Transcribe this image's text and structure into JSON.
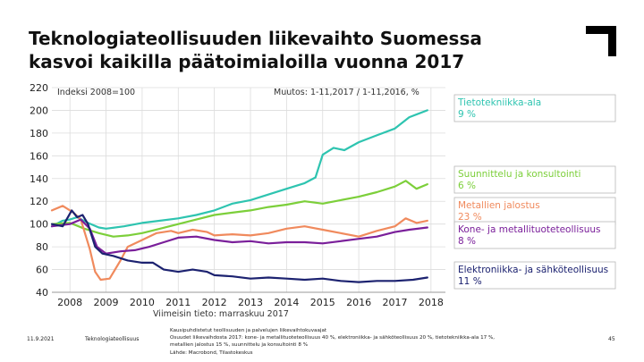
{
  "title": {
    "line1": "Teknologiateollisuuden liikevaihto Suomessa",
    "line2": "kasvoi kaikilla päätoimialoilla vuonna 2017"
  },
  "footer": {
    "date": "11.9.2021",
    "org": "Teknologiateollisuus",
    "note1": "Kausipuhdistetut teollisuuden ja palvelujen liikevaihtokuvaajat",
    "note2": "Osuudet liikevaihdosta 2017: kone- ja metallituoteteollisuus 40 %, elektroniikka- ja sähköteollisuus 20 %, tietotekniikka-ala 17 %,",
    "note3": "metallien jalostus 15 %, suunnittelu ja konsultointi 8 %",
    "note4": "Lähde: Macrobond, Tilastokeskus",
    "page": "45"
  },
  "colors": {
    "tietotekniikka": "#2ec4b0",
    "suunnittelu": "#7ccf3a",
    "metallien": "#f08a5d",
    "kone": "#7a1f9a",
    "elektroniikka": "#1c2270",
    "label_box_border": "#b8b8b8",
    "grid": "#dcdcdc"
  },
  "chart_data": {
    "type": "line",
    "index_label": "Indeksi 2008=100",
    "change_label": "Muutos: 1-11,2017 / 1-11,2016, %",
    "footnote": "Viimeisin tieto: marraskuu 2017",
    "x_ticks": [
      "2008",
      "2009",
      "2010",
      "2011",
      "2012",
      "2013",
      "2014",
      "2015",
      "2016",
      "2017",
      "2018"
    ],
    "y_ticks": [
      "40",
      "60",
      "80",
      "100",
      "120",
      "140",
      "160",
      "180",
      "200",
      "220"
    ],
    "xlim": [
      2007.5,
      2018.4
    ],
    "ylim": [
      40,
      220
    ],
    "legend_position": "right",
    "series": [
      {
        "key": "tietotekniikka",
        "label": "Tietotekniikka-ala",
        "change": "9 %",
        "points": [
          [
            2007.5,
            98
          ],
          [
            2007.8,
            103
          ],
          [
            2008.0,
            104
          ],
          [
            2008.2,
            106
          ],
          [
            2008.5,
            101
          ],
          [
            2008.8,
            97
          ],
          [
            2009.0,
            96
          ],
          [
            2009.5,
            98
          ],
          [
            2010.0,
            101
          ],
          [
            2010.5,
            103
          ],
          [
            2011.0,
            105
          ],
          [
            2011.5,
            108
          ],
          [
            2012.0,
            112
          ],
          [
            2012.5,
            118
          ],
          [
            2013.0,
            121
          ],
          [
            2013.5,
            126
          ],
          [
            2014.0,
            131
          ],
          [
            2014.5,
            136
          ],
          [
            2014.8,
            141
          ],
          [
            2015.0,
            161
          ],
          [
            2015.3,
            167
          ],
          [
            2015.6,
            165
          ],
          [
            2016.0,
            172
          ],
          [
            2016.5,
            178
          ],
          [
            2017.0,
            184
          ],
          [
            2017.4,
            194
          ],
          [
            2017.9,
            200
          ]
        ]
      },
      {
        "key": "suunnittelu",
        "label": "Suunnittelu ja konsultointi",
        "change": "6 %",
        "points": [
          [
            2007.5,
            100
          ],
          [
            2008.0,
            101
          ],
          [
            2008.4,
            96
          ],
          [
            2008.8,
            92
          ],
          [
            2009.2,
            89
          ],
          [
            2009.6,
            90
          ],
          [
            2010.0,
            92
          ],
          [
            2010.5,
            96
          ],
          [
            2011.0,
            100
          ],
          [
            2011.5,
            104
          ],
          [
            2012.0,
            108
          ],
          [
            2012.5,
            110
          ],
          [
            2013.0,
            112
          ],
          [
            2013.5,
            115
          ],
          [
            2014.0,
            117
          ],
          [
            2014.5,
            120
          ],
          [
            2015.0,
            118
          ],
          [
            2015.5,
            121
          ],
          [
            2016.0,
            124
          ],
          [
            2016.5,
            128
          ],
          [
            2017.0,
            133
          ],
          [
            2017.3,
            138
          ],
          [
            2017.6,
            131
          ],
          [
            2017.9,
            135
          ]
        ]
      },
      {
        "key": "metallien",
        "label": "Metallien jalostus",
        "change": "23 %",
        "points": [
          [
            2007.5,
            112
          ],
          [
            2007.8,
            116
          ],
          [
            2008.1,
            110
          ],
          [
            2008.3,
            104
          ],
          [
            2008.55,
            78
          ],
          [
            2008.7,
            58
          ],
          [
            2008.85,
            51
          ],
          [
            2009.1,
            52
          ],
          [
            2009.4,
            68
          ],
          [
            2009.6,
            80
          ],
          [
            2010.0,
            86
          ],
          [
            2010.4,
            92
          ],
          [
            2010.8,
            94
          ],
          [
            2011.0,
            92
          ],
          [
            2011.4,
            95
          ],
          [
            2011.8,
            93
          ],
          [
            2012.0,
            90
          ],
          [
            2012.5,
            91
          ],
          [
            2013.0,
            90
          ],
          [
            2013.5,
            92
          ],
          [
            2014.0,
            96
          ],
          [
            2014.5,
            98
          ],
          [
            2015.0,
            95
          ],
          [
            2015.5,
            92
          ],
          [
            2016.0,
            89
          ],
          [
            2016.5,
            94
          ],
          [
            2017.0,
            98
          ],
          [
            2017.3,
            105
          ],
          [
            2017.6,
            101
          ],
          [
            2017.9,
            103
          ]
        ]
      },
      {
        "key": "kone",
        "label": "Kone- ja metallituoteteollisuus",
        "change": "8 %",
        "points": [
          [
            2007.5,
            98
          ],
          [
            2008.0,
            100
          ],
          [
            2008.3,
            104
          ],
          [
            2008.55,
            96
          ],
          [
            2008.75,
            80
          ],
          [
            2009.0,
            74
          ],
          [
            2009.4,
            76
          ],
          [
            2009.8,
            77
          ],
          [
            2010.2,
            80
          ],
          [
            2010.6,
            84
          ],
          [
            2011.0,
            88
          ],
          [
            2011.5,
            89
          ],
          [
            2012.0,
            86
          ],
          [
            2012.5,
            84
          ],
          [
            2013.0,
            85
          ],
          [
            2013.5,
            83
          ],
          [
            2014.0,
            84
          ],
          [
            2014.5,
            84
          ],
          [
            2015.0,
            83
          ],
          [
            2015.5,
            85
          ],
          [
            2016.0,
            87
          ],
          [
            2016.5,
            89
          ],
          [
            2017.0,
            93
          ],
          [
            2017.4,
            95
          ],
          [
            2017.9,
            97
          ]
        ]
      },
      {
        "key": "elektroniikka",
        "label": "Elektroniikka- ja sähköteollisuus",
        "change": "11 %",
        "points": [
          [
            2007.5,
            100
          ],
          [
            2007.8,
            98
          ],
          [
            2008.05,
            112
          ],
          [
            2008.2,
            106
          ],
          [
            2008.35,
            108
          ],
          [
            2008.5,
            100
          ],
          [
            2008.7,
            80
          ],
          [
            2008.9,
            74
          ],
          [
            2009.2,
            72
          ],
          [
            2009.6,
            68
          ],
          [
            2010.0,
            66
          ],
          [
            2010.3,
            66
          ],
          [
            2010.6,
            60
          ],
          [
            2011.0,
            58
          ],
          [
            2011.4,
            60
          ],
          [
            2011.8,
            58
          ],
          [
            2012.0,
            55
          ],
          [
            2012.5,
            54
          ],
          [
            2013.0,
            52
          ],
          [
            2013.5,
            53
          ],
          [
            2014.0,
            52
          ],
          [
            2014.5,
            51
          ],
          [
            2015.0,
            52
          ],
          [
            2015.5,
            50
          ],
          [
            2016.0,
            49
          ],
          [
            2016.5,
            50
          ],
          [
            2017.0,
            50
          ],
          [
            2017.5,
            51
          ],
          [
            2017.9,
            53
          ]
        ]
      }
    ]
  }
}
